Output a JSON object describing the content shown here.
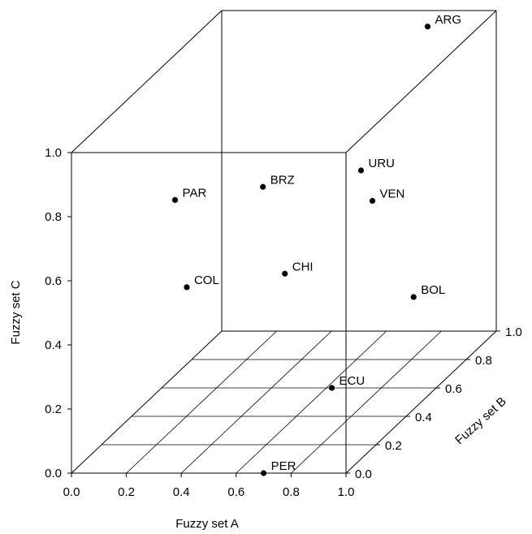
{
  "chart_data": {
    "type": "scatter",
    "projection": "3d-cube",
    "title": "",
    "xlabel": "Fuzzy set A",
    "ylabel": "Fuzzy set B",
    "zlabel": "Fuzzy set C",
    "xlim": [
      0,
      1
    ],
    "ylim": [
      0,
      1
    ],
    "zlim": [
      0,
      1
    ],
    "x_ticks": [
      "0.0",
      "0.2",
      "0.4",
      "0.6",
      "0.8",
      "1.0"
    ],
    "y_ticks": [
      "0.0",
      "0.2",
      "0.4",
      "0.6",
      "0.8",
      "1.0"
    ],
    "z_ticks": [
      "0.0",
      "0.2",
      "0.4",
      "0.6",
      "0.8",
      "1.0"
    ],
    "floor_grid": true,
    "points": [
      {
        "label": "ARG",
        "x": 0.75,
        "y": 1.0,
        "z": 0.95
      },
      {
        "label": "BRZ",
        "x": 0.15,
        "y": 1.0,
        "z": 0.45
      },
      {
        "label": "URU",
        "x": 1.0,
        "y": 0.1,
        "z": 0.9
      },
      {
        "label": "VEN",
        "x": 0.85,
        "y": 0.45,
        "z": 0.65
      },
      {
        "label": "PAR",
        "x": 0.35,
        "y": 0.05,
        "z": 0.83
      },
      {
        "label": "CHI",
        "x": 0.75,
        "y": 0.05,
        "z": 0.6
      },
      {
        "label": "COL",
        "x": 0.42,
        "y": 0.0,
        "z": 0.58
      },
      {
        "label": "BOL",
        "x": 1.0,
        "y": 0.45,
        "z": 0.35
      },
      {
        "label": "ECU",
        "x": 0.62,
        "y": 0.6,
        "z": 0.0
      },
      {
        "label": "PER",
        "x": 0.7,
        "y": 0.0,
        "z": 0.0
      }
    ]
  }
}
